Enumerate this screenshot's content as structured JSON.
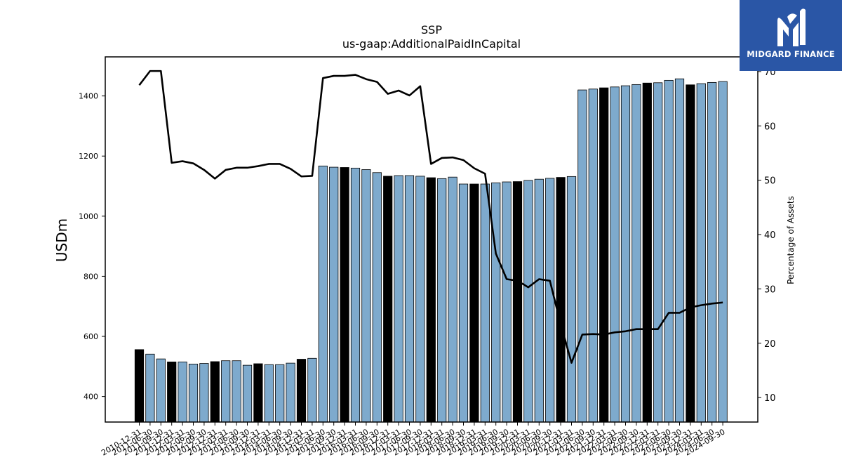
{
  "brand": {
    "name": "MIDGARD FINANCE",
    "bg_color": "#2a56a6"
  },
  "chart_data": {
    "type": "bar",
    "title": "SSP",
    "subtitle": "us-gaap:AdditionalPaidInCapital",
    "ylabel": "USDm",
    "y2label": "Percentage of Assets",
    "ylim": [
      315,
      1530
    ],
    "y2lim": [
      5.5,
      72.7
    ],
    "yticks": [
      400,
      600,
      800,
      1000,
      1200,
      1400
    ],
    "y2ticks": [
      10,
      20,
      30,
      40,
      50,
      60,
      70
    ],
    "grid": false,
    "colors": {
      "bar": "#7eaacd",
      "bar_highlight": "#000000",
      "line": "#000000"
    },
    "categories": [
      "2010-12-31",
      "2011-06-30",
      "2011-09-30",
      "2011-12-31",
      "2012-03-31",
      "2012-06-30",
      "2012-09-30",
      "2012-12-31",
      "2013-03-31",
      "2013-06-30",
      "2013-09-30",
      "2013-12-31",
      "2014-03-31",
      "2014-06-30",
      "2014-09-30",
      "2014-12-31",
      "2015-03-31",
      "2015-06-30",
      "2015-09-30",
      "2015-12-31",
      "2016-03-31",
      "2016-06-30",
      "2016-09-30",
      "2016-12-31",
      "2017-03-31",
      "2017-06-30",
      "2017-09-30",
      "2017-12-31",
      "2018-03-31",
      "2018-06-30",
      "2018-09-30",
      "2018-12-31",
      "2019-03-31",
      "2019-06-30",
      "2019-09-30",
      "2019-12-31",
      "2020-03-31",
      "2020-06-30",
      "2020-09-30",
      "2020-12-31",
      "2021-03-31",
      "2021-06-30",
      "2021-09-30",
      "2021-12-31",
      "2022-03-31",
      "2022-06-30",
      "2022-09-30",
      "2022-12-31",
      "2023-03-31",
      "2023-06-30",
      "2023-09-30",
      "2023-12-31",
      "2024-03-31",
      "2024-06-30",
      "2024-09-30"
    ],
    "series": [
      {
        "type": "bar",
        "values": [
          556,
          541,
          525,
          515,
          515,
          508,
          510,
          516,
          519,
          519,
          504,
          509,
          506,
          506,
          511,
          524,
          527,
          1167,
          1163,
          1162,
          1160,
          1155,
          1145,
          1133,
          1135,
          1135,
          1133,
          1128,
          1125,
          1130,
          1107,
          1107,
          1107,
          1111,
          1114,
          1115,
          1119,
          1123,
          1126,
          1129,
          1132,
          1420,
          1423,
          1427,
          1430,
          1434,
          1438,
          1443,
          1444,
          1452,
          1457,
          1437,
          1441,
          1445,
          1448
        ],
        "highlight": [
          true,
          false,
          false,
          true,
          false,
          false,
          false,
          true,
          false,
          false,
          false,
          true,
          false,
          false,
          false,
          true,
          false,
          false,
          false,
          true,
          false,
          false,
          false,
          true,
          false,
          false,
          false,
          true,
          false,
          false,
          false,
          true,
          false,
          false,
          false,
          true,
          false,
          false,
          false,
          true,
          false,
          false,
          false,
          true,
          false,
          false,
          false,
          true,
          false,
          false,
          false,
          true,
          false,
          false,
          false
        ]
      },
      {
        "type": "line",
        "axis": "right",
        "values": [
          67.5,
          70.1,
          70.1,
          53.2,
          53.5,
          53.1,
          51.9,
          50.3,
          51.9,
          52.3,
          52.3,
          52.6,
          53.0,
          53.0,
          52.1,
          50.7,
          50.8,
          68.8,
          69.2,
          69.2,
          69.4,
          68.6,
          68.1,
          65.9,
          66.5,
          65.6,
          67.3,
          53.0,
          54.1,
          54.2,
          53.7,
          52.2,
          51.2,
          36.5,
          31.8,
          31.5,
          30.3,
          31.8,
          31.5,
          23.5,
          16.4,
          21.6,
          21.7,
          21.6,
          22.0,
          22.2,
          22.6,
          22.6,
          22.6,
          25.6,
          25.6,
          26.6,
          27.0,
          27.3,
          27.5
        ]
      }
    ]
  }
}
